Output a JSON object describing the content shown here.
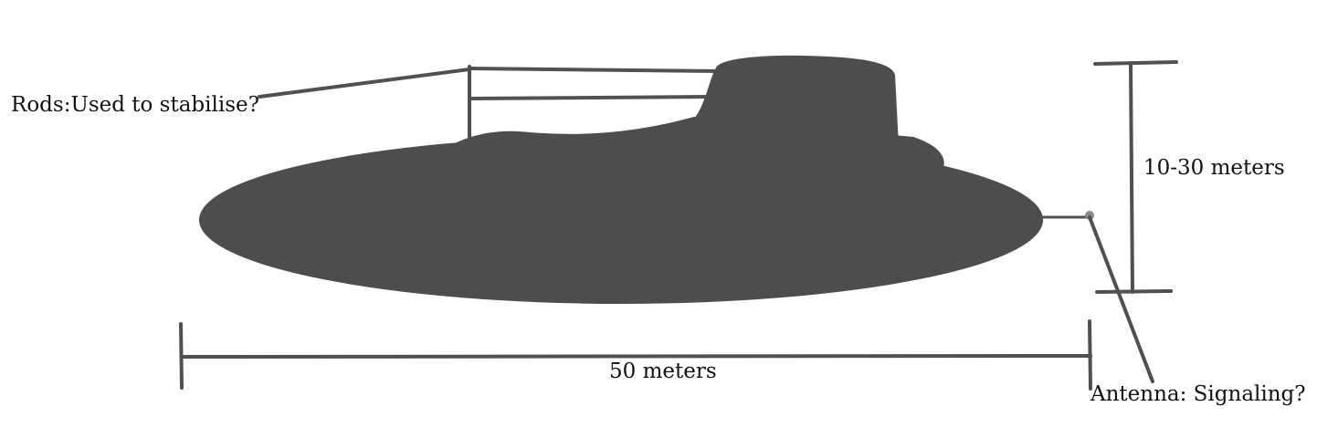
{
  "colors": {
    "ink": "#4d4d4d",
    "line": "#505050",
    "dot": "#8a8a8a",
    "text": "#111111"
  },
  "labels": {
    "rods": "Rods:Used to stabilise?",
    "height": "10-30 meters",
    "width": "50 meters",
    "antenna": "Antenna: Signaling?"
  }
}
